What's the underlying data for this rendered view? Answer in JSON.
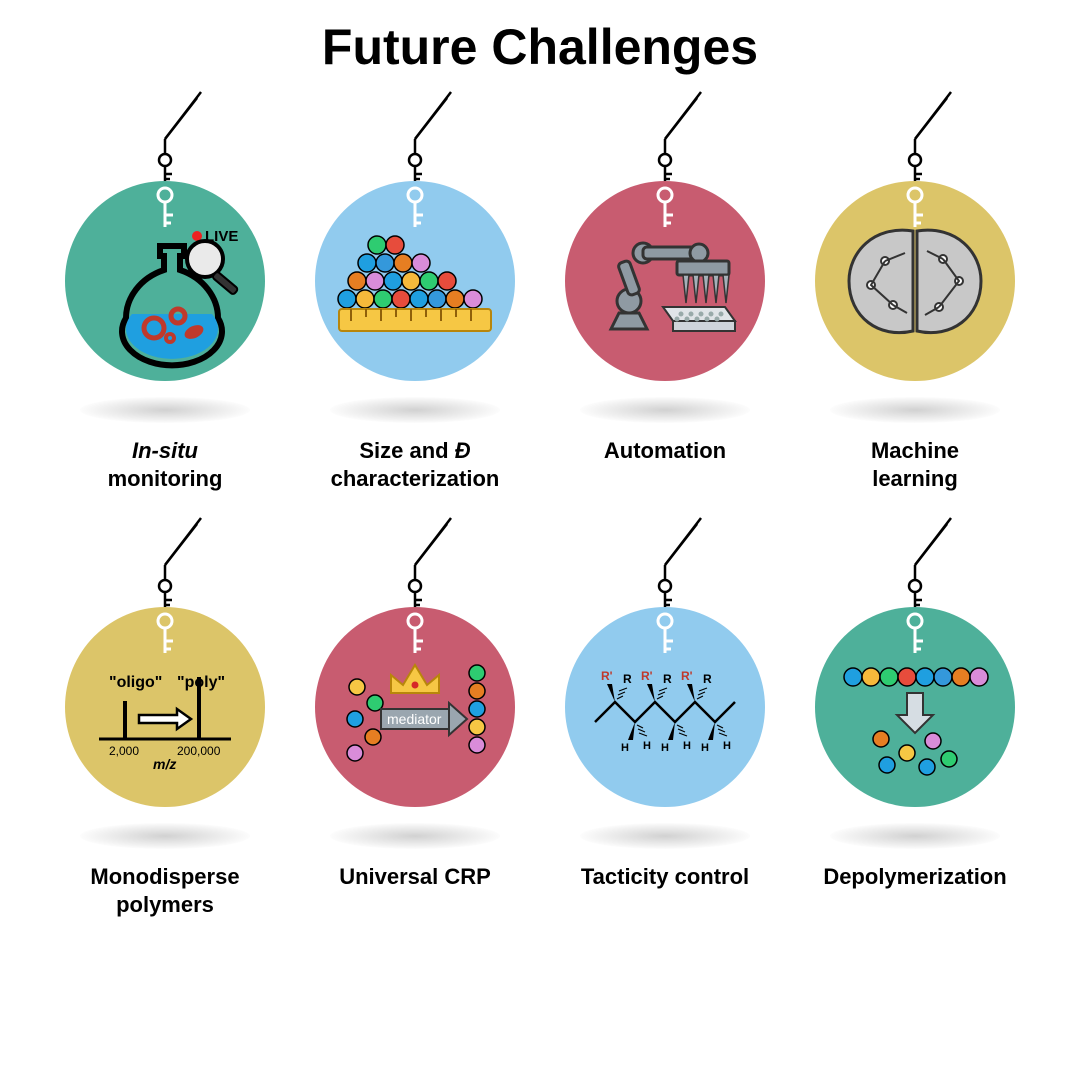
{
  "title": "Future Challenges",
  "palette": {
    "teal": "#4eb09a",
    "blue": "#91cbee",
    "rose": "#c85c70",
    "mustard": "#dcc569",
    "black": "#000000",
    "white": "#ffffff",
    "shadow": "rgba(0,0,0,0.18)"
  },
  "beads": [
    "#1f9fe0",
    "#f6b93b",
    "#2ecc71",
    "#e74c3c",
    "#1f9fe0",
    "#3498db",
    "#e67e22",
    "#d98cd9"
  ],
  "items": [
    {
      "id": "insitu",
      "bg": "#4eb09a",
      "label_html": "<em>In-situ</em><br>monitoring",
      "text": {
        "live": "LIVE"
      }
    },
    {
      "id": "sized",
      "bg": "#91cbee",
      "label_html": "Size and <em>Đ</em><br>characterization"
    },
    {
      "id": "automation",
      "bg": "#c85c70",
      "label_html": "Automation"
    },
    {
      "id": "ml",
      "bg": "#dcc569",
      "label_html": "Machine<br>learning"
    },
    {
      "id": "monodisperse",
      "bg": "#dcc569",
      "label_html": "Monodisperse<br>polymers",
      "text": {
        "oligo": "\"oligo\"",
        "poly": "\"poly\"",
        "x1": "2,000",
        "x2": "200,000",
        "axis": "m/z"
      }
    },
    {
      "id": "universal",
      "bg": "#c85c70",
      "label_html": "Universal CRP",
      "text": {
        "mediator": "mediator"
      }
    },
    {
      "id": "tacticity",
      "bg": "#91cbee",
      "label_html": "Tacticity control",
      "text": {
        "R": "R",
        "Rp": "R'",
        "H": "H"
      }
    },
    {
      "id": "depoly",
      "bg": "#4eb09a",
      "label_html": "Depolymerization"
    }
  ]
}
